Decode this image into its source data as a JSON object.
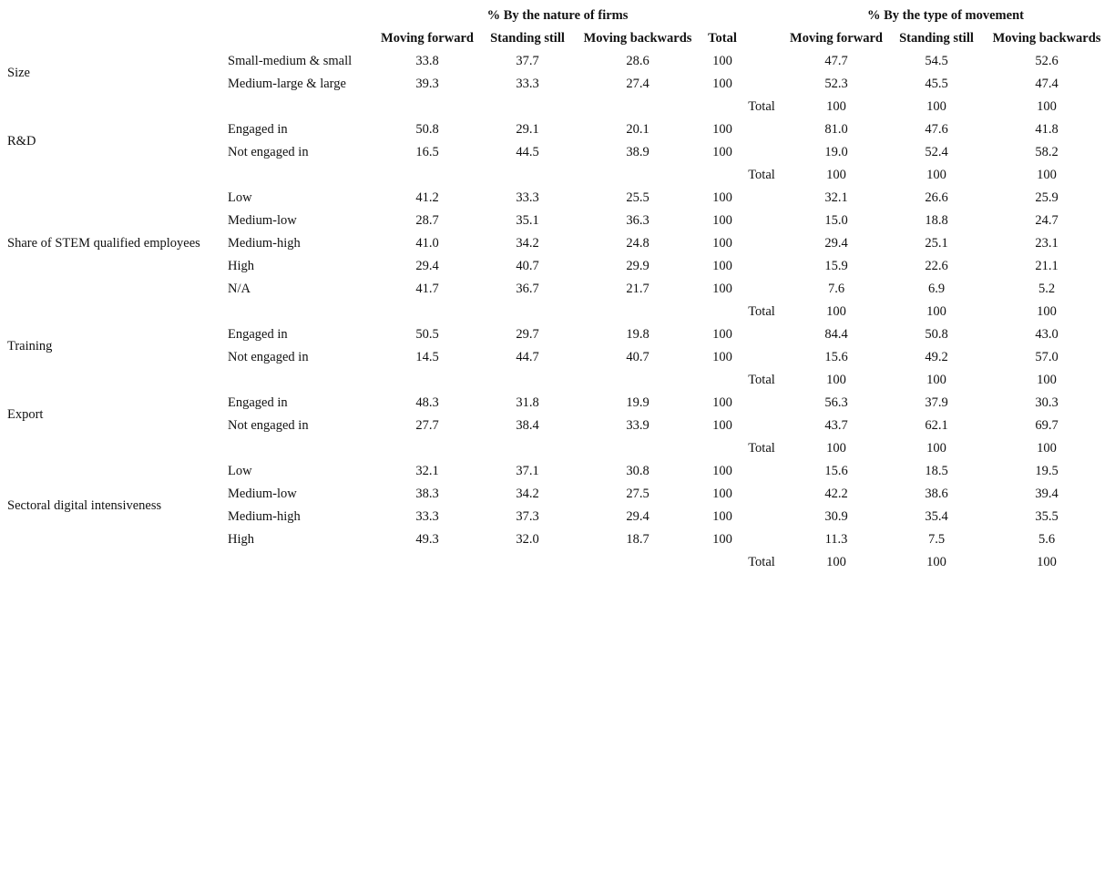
{
  "header": {
    "group_nature": "% By the nature of firms",
    "group_movement": "% By the type of movement",
    "nature_columns": [
      "Moving forward",
      "Standing still",
      "Moving backwards",
      "Total"
    ],
    "movement_columns": [
      "Moving forward",
      "Standing still",
      "Moving backwards"
    ]
  },
  "groups": [
    {
      "label": "Size",
      "rows": [
        {
          "label": "Small-medium & small",
          "nature": [
            "33.8",
            "37.7",
            "28.6",
            "100"
          ],
          "movement": [
            "47.7",
            "54.5",
            "52.6"
          ]
        },
        {
          "label": "Medium-large & large",
          "nature": [
            "39.3",
            "33.3",
            "27.4",
            "100"
          ],
          "movement": [
            "52.3",
            "45.5",
            "47.4"
          ]
        }
      ],
      "total": {
        "label": "Total",
        "movement": [
          "100",
          "100",
          "100"
        ]
      }
    },
    {
      "label": "R&D",
      "rows": [
        {
          "label": "Engaged in",
          "nature": [
            "50.8",
            "29.1",
            "20.1",
            "100"
          ],
          "movement": [
            "81.0",
            "47.6",
            "41.8"
          ]
        },
        {
          "label": "Not engaged in",
          "nature": [
            "16.5",
            "44.5",
            "38.9",
            "100"
          ],
          "movement": [
            "19.0",
            "52.4",
            "58.2"
          ]
        }
      ],
      "total": {
        "label": "Total",
        "movement": [
          "100",
          "100",
          "100"
        ]
      }
    },
    {
      "label": "Share of STEM qualified employees",
      "rows": [
        {
          "label": "Low",
          "nature": [
            "41.2",
            "33.3",
            "25.5",
            "100"
          ],
          "movement": [
            "32.1",
            "26.6",
            "25.9"
          ]
        },
        {
          "label": "Medium-low",
          "nature": [
            "28.7",
            "35.1",
            "36.3",
            "100"
          ],
          "movement": [
            "15.0",
            "18.8",
            "24.7"
          ]
        },
        {
          "label": "Medium-high",
          "nature": [
            "41.0",
            "34.2",
            "24.8",
            "100"
          ],
          "movement": [
            "29.4",
            "25.1",
            "23.1"
          ]
        },
        {
          "label": "High",
          "nature": [
            "29.4",
            "40.7",
            "29.9",
            "100"
          ],
          "movement": [
            "15.9",
            "22.6",
            "21.1"
          ]
        },
        {
          "label": "N/A",
          "nature": [
            "41.7",
            "36.7",
            "21.7",
            "100"
          ],
          "movement": [
            "7.6",
            "6.9",
            "5.2"
          ]
        }
      ],
      "total": {
        "label": "Total",
        "movement": [
          "100",
          "100",
          "100"
        ]
      }
    },
    {
      "label": "Training",
      "rows": [
        {
          "label": "Engaged in",
          "nature": [
            "50.5",
            "29.7",
            "19.8",
            "100"
          ],
          "movement": [
            "84.4",
            "50.8",
            "43.0"
          ]
        },
        {
          "label": "Not engaged in",
          "nature": [
            "14.5",
            "44.7",
            "40.7",
            "100"
          ],
          "movement": [
            "15.6",
            "49.2",
            "57.0"
          ]
        }
      ],
      "total": {
        "label": "Total",
        "movement": [
          "100",
          "100",
          "100"
        ]
      }
    },
    {
      "label": "Export",
      "rows": [
        {
          "label": "Engaged in",
          "nature": [
            "48.3",
            "31.8",
            "19.9",
            "100"
          ],
          "movement": [
            "56.3",
            "37.9",
            "30.3"
          ]
        },
        {
          "label": "Not engaged in",
          "nature": [
            "27.7",
            "38.4",
            "33.9",
            "100"
          ],
          "movement": [
            "43.7",
            "62.1",
            "69.7"
          ]
        }
      ],
      "total": {
        "label": "Total",
        "movement": [
          "100",
          "100",
          "100"
        ]
      }
    },
    {
      "label": "Sectoral digital intensiveness",
      "rows": [
        {
          "label": "Low",
          "nature": [
            "32.1",
            "37.1",
            "30.8",
            "100"
          ],
          "movement": [
            "15.6",
            "18.5",
            "19.5"
          ]
        },
        {
          "label": "Medium-low",
          "nature": [
            "38.3",
            "34.2",
            "27.5",
            "100"
          ],
          "movement": [
            "42.2",
            "38.6",
            "39.4"
          ]
        },
        {
          "label": "Medium-high",
          "nature": [
            "33.3",
            "37.3",
            "29.4",
            "100"
          ],
          "movement": [
            "30.9",
            "35.4",
            "35.5"
          ]
        },
        {
          "label": "High",
          "nature": [
            "49.3",
            "32.0",
            "18.7",
            "100"
          ],
          "movement": [
            "11.3",
            "7.5",
            "5.6"
          ]
        }
      ],
      "total": {
        "label": "Total",
        "movement": [
          "100",
          "100",
          "100"
        ]
      }
    }
  ]
}
